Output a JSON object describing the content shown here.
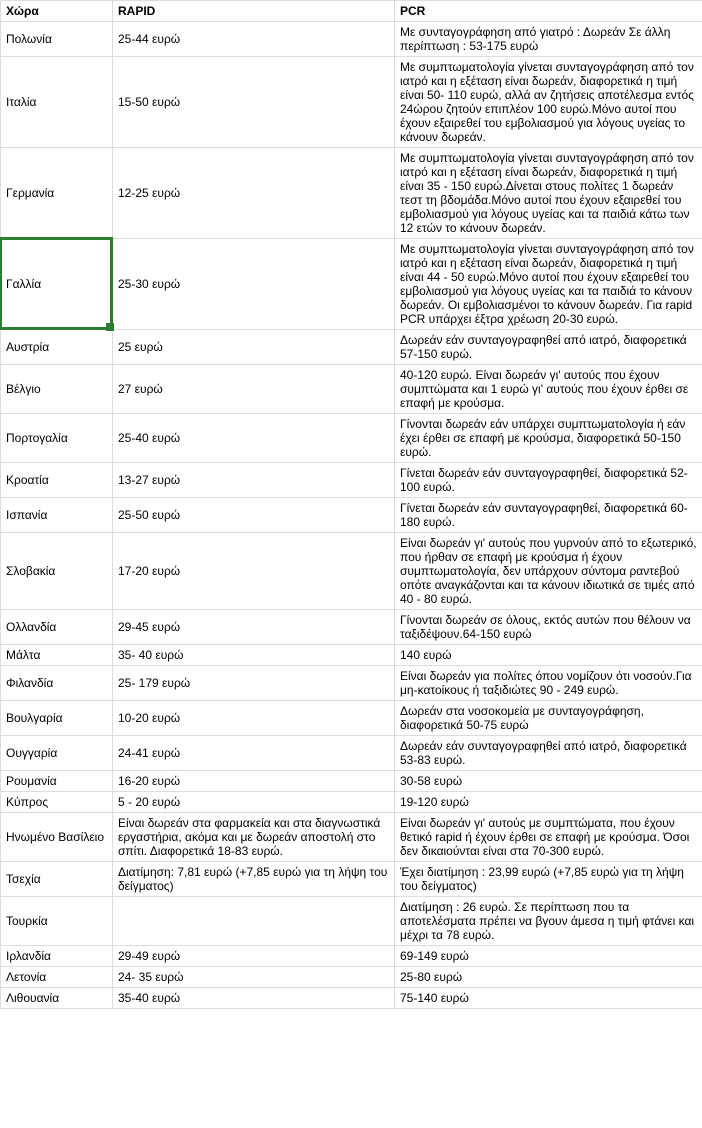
{
  "columns": [
    "Χώρα",
    "RAPID",
    "PCR"
  ],
  "rows": [
    {
      "country": "Πολωνία",
      "rapid": "25-44 ευρώ",
      "pcr": "Με συνταγογράφηση από γιατρό : Δωρεάν Σε άλλη περίπτωση : 53-175 ευρώ"
    },
    {
      "country": "Ιταλία",
      "rapid": "15-50 ευρώ",
      "pcr": "Με συμπτωματολογία γίνεται συνταγογράφηση από τον ιατρό και η εξέταση είναι δωρεάν, διαφορετικά η τιμή είναι 50- 110 ευρώ, αλλά αν ζητήσεις αποτέλεσμα εντός 24ώρου ζητούν επιπλέον 100 ευρώ.Μόνο αυτοί που έχουν εξαιρεθεί του εμβολιασμού για λόγους υγείας το κάνουν δωρεάν."
    },
    {
      "country": "Γερμανία",
      "rapid": "12-25 ευρώ",
      "pcr": "Με συμπτωματολογία γίνεται συνταγογράφηση από τον ιατρό και η εξέταση είναι δωρεάν, διαφορετικά η τιμή είναι 35 - 150 ευρώ.Δίνεται στους πολίτες 1 δωρεάν τεστ τη βδομάδα.Μόνο αυτοί που έχουν εξαιρεθεί του εμβολιασμού για λόγους υγείας και τα παιδιά κάτω των 12 ετών το κάνουν δωρεάν."
    },
    {
      "country": "Γαλλία",
      "rapid": "25-30 ευρώ",
      "pcr": "Με συμπτωματολογία γίνεται συνταγογράφηση από τον ιατρό και η εξέταση είναι δωρεάν, διαφορετικά η τιμή είναι 44 - 50 ευρώ.Μόνο αυτοί που έχουν εξαιρεθεί του εμβολιασμού για λόγους υγείας και τα παιδιά το κάνουν δωρεάν. Οι εμβολιασμένοι το κάνουν δωρεάν. Για rapid PCR υπάρχει έξτρα χρέωση 20-30 ευρώ.",
      "highlight": true
    },
    {
      "country": "Αυστρία",
      "rapid": "25 ευρώ",
      "pcr": "Δωρεάν εάν συνταγογραφηθεί από ιατρό, διαφορετικά 57-150 ευρώ."
    },
    {
      "country": "Βέλγιο",
      "rapid": "27 ευρώ",
      "pcr": "40-120 ευρώ. Είναι δωρεάν γι' αυτούς που έχουν συμπτώματα και 1 ευρώ γι' αυτούς που έχουν έρθει σε επαφή με κρούσμα."
    },
    {
      "country": "Πορτογαλία",
      "rapid": "25-40 ευρώ",
      "pcr": "Γίνονται δωρεάν εάν υπάρχει συμπτωματολογία ή εάν έχει έρθει σε επαφή με κρούσμα, διαφορετικά 50-150 ευρώ."
    },
    {
      "country": "Κροατία",
      "rapid": "13-27 ευρώ",
      "pcr": "Γίνεται δωρεάν εάν συνταγογραφηθεί, διαφορετικά 52-100 ευρώ."
    },
    {
      "country": "Ισπανία",
      "rapid": "25-50 ευρώ",
      "pcr": "Γίνεται δωρεάν εάν συνταγογραφηθεί, διαφορετικά 60-180 ευρώ."
    },
    {
      "country": "Σλοβακία",
      "rapid": "17-20 ευρώ",
      "pcr": "Είναι δωρεάν γι' αυτούς που γυρνούν από το εξωτερικό, που ήρθαν σε επαφή με κρούσμα ή έχουν συμπτωματολογία, δεν υπάρχουν σύντομα ραντεβού οπότε αναγκάζονται και τα κάνουν ιδιωτικά σε τιμές από 40 - 80 ευρώ."
    },
    {
      "country": "Ολλανδία",
      "rapid": "29-45 ευρώ",
      "pcr": "Γίνονται δωρεάν σε όλους, εκτός αυτών που θέλουν να ταξιδέψουν.64-150 ευρώ"
    },
    {
      "country": "Μάλτα",
      "rapid": "35- 40 ευρώ",
      "pcr": "140 ευρώ"
    },
    {
      "country": "Φιλανδία",
      "rapid": "25- 179 ευρώ",
      "pcr": "Είναι δωρεάν για πολίτες όπου νομίζουν ότι νοσούν.Για μη-κατοίκους ή ταξιδιώτες 90 - 249 ευρώ."
    },
    {
      "country": "Βουλγαρία",
      "rapid": "10-20 ευρώ",
      "pcr": "Δωρεάν στα νοσοκομεία με συνταγογράφηση, διαφορετικά 50-75 ευρώ"
    },
    {
      "country": "Ουγγαρία",
      "rapid": "24-41 ευρώ",
      "pcr": "Δωρεάν εάν συνταγογραφηθεί από ιατρό, διαφορετικά 53-83 ευρώ."
    },
    {
      "country": "Ρουμανία",
      "rapid": "16-20 ευρώ",
      "pcr": "30-58 ευρώ"
    },
    {
      "country": "Κύπρος",
      "rapid": "5 - 20 ευρώ",
      "pcr": "19-120 ευρώ"
    },
    {
      "country": "Ηνωμένο Βασίλειο",
      "rapid": "Είναι δωρεάν στα φαρμακεία και στα διαγνωστικά εργαστήρια, ακόμα και με δωρεάν αποστολή στο σπίτι. Διαφορετικά 18-83 ευρώ.",
      "pcr": "Είναι δωρεάν γι' αυτούς με συμπτώματα, που έχουν θετικό rapid ή έχουν έρθει σε επαφή με κρούσμα. Όσοι δεν δικαιούνται είναι στα 70-300 ευρώ."
    },
    {
      "country": "Τσεχία",
      "rapid": "Διατίμηση: 7,81 ευρώ (+7,85 ευρώ για τη λήψη του δείγματος)",
      "pcr": "Έχει διατίμηση : 23,99 ευρώ (+7,85 ευρώ για τη λήψη του δείγματος)"
    },
    {
      "country": "Τουρκία",
      "rapid": "",
      "pcr": "Διατίμηση : 26 ευρώ. Σε περίπτωση που τα αποτελέσματα πρέπει να βγουν άμεσα η τιμή φτάνει και μέχρι τα 78 ευρώ."
    },
    {
      "country": "Ιρλανδία",
      "rapid": "29-49 ευρώ",
      "pcr": "69-149 ευρώ"
    },
    {
      "country": "Λετονία",
      "rapid": "24- 35 ευρώ",
      "pcr": "25-80 ευρώ"
    },
    {
      "country": "Λιθουανία",
      "rapid": "35-40 ευρώ",
      "pcr": "75-140 ευρώ"
    }
  ],
  "highlight_index": 3,
  "colors": {
    "border": "#dddddd",
    "text": "#000000",
    "highlight_border": "#2e7d32",
    "background": "#ffffff"
  }
}
